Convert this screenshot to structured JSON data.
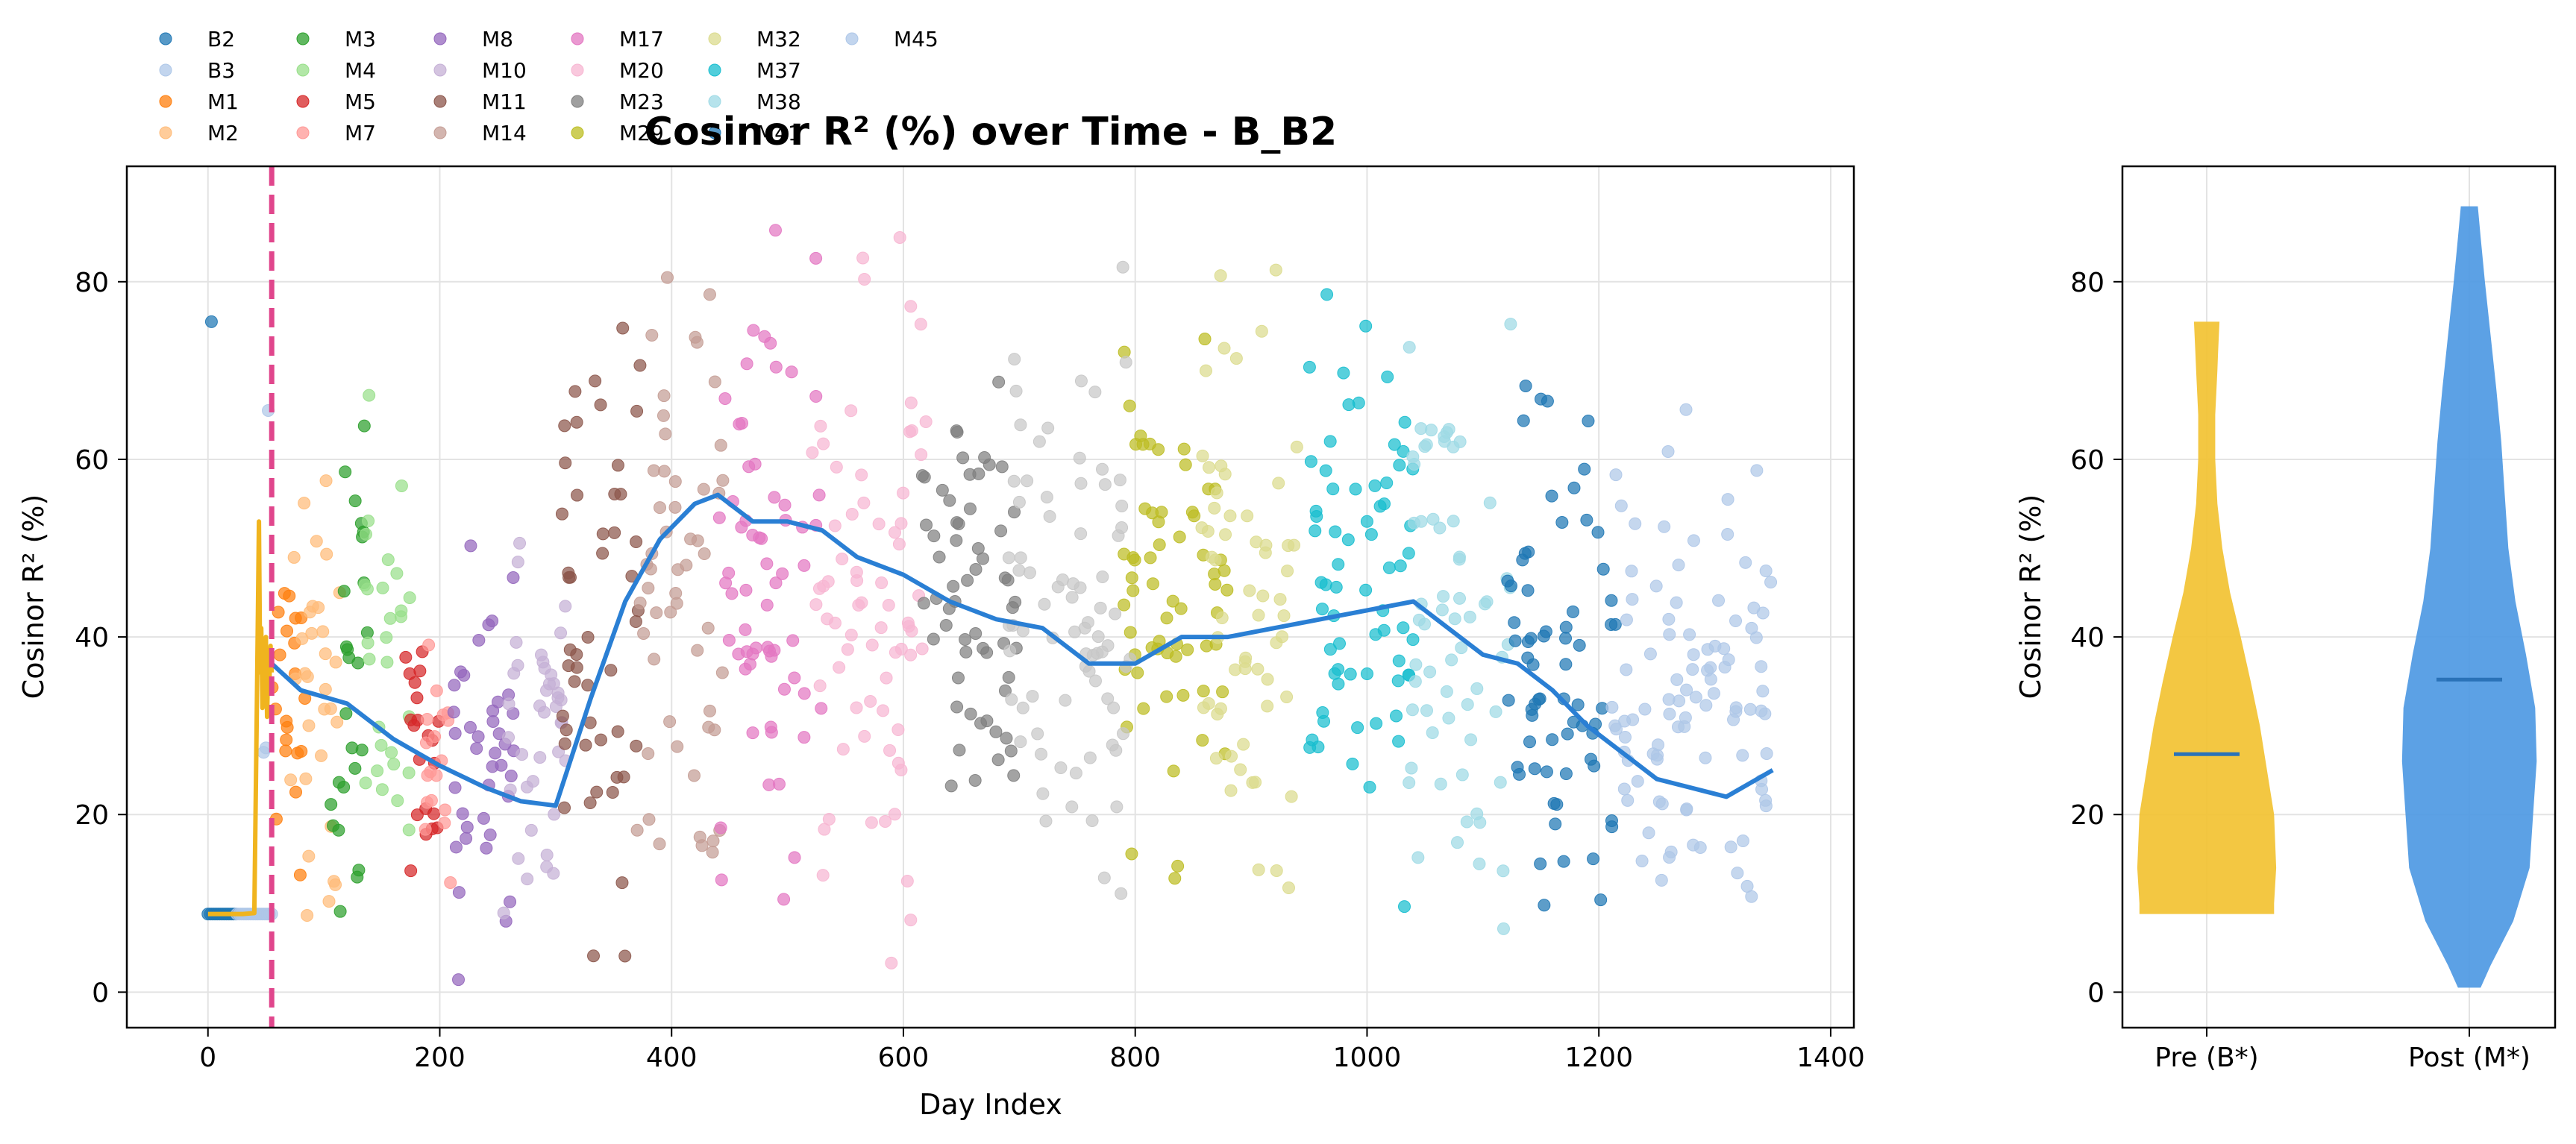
{
  "chart_data": [
    {
      "type": "scatter",
      "title": "Cosinor R² (%) over Time - B_B2",
      "xlabel": "Day Index",
      "ylabel": "Cosinor R² (%)",
      "xlim": [
        -70,
        1420
      ],
      "ylim": [
        -4,
        93
      ],
      "xticks": [
        0,
        200,
        400,
        600,
        800,
        1000,
        1200,
        1400
      ],
      "yticks": [
        0,
        20,
        40,
        60,
        80
      ],
      "grid": true,
      "legend_position": "top-left, above plot",
      "intervention_line": {
        "x": 55,
        "color": "#e0468c",
        "style": "dashed"
      },
      "series": [
        {
          "name": "B2",
          "color": "#1f77b4",
          "x_range": [
            0,
            25
          ],
          "pattern": "baseline",
          "base": 8.8,
          "spikes": [
            [
              3,
              75.5
            ]
          ]
        },
        {
          "name": "B3",
          "color": "#aec7e8",
          "x_range": [
            25,
            55
          ],
          "pattern": "baseline",
          "base": 8.8,
          "spikes": [
            [
              52,
              65.5
            ],
            [
              50,
              27.5
            ],
            [
              48,
              27
            ]
          ]
        },
        {
          "name": "M1",
          "color": "#ff7f0e",
          "x_range": [
            55,
            85
          ],
          "pattern": "scatter",
          "ymin": 0,
          "ymax": 61
        },
        {
          "name": "M2",
          "color": "#ffbb78",
          "x_range": [
            70,
            115
          ],
          "pattern": "scatter",
          "ymin": 0,
          "ymax": 66
        },
        {
          "name": "M3",
          "color": "#2ca02c",
          "x_range": [
            105,
            140
          ],
          "pattern": "scatter",
          "ymin": 1,
          "ymax": 65
        },
        {
          "name": "M4",
          "color": "#98df8a",
          "x_range": [
            135,
            175
          ],
          "pattern": "scatter",
          "ymin": 1,
          "ymax": 70
        },
        {
          "name": "M5",
          "color": "#d62728",
          "x_range": [
            170,
            200
          ],
          "pattern": "scatter",
          "ymin": 5,
          "ymax": 42
        },
        {
          "name": "M7",
          "color": "#ff9896",
          "x_range": [
            185,
            210
          ],
          "pattern": "scatter",
          "ymin": 10,
          "ymax": 40
        },
        {
          "name": "M8",
          "color": "#9467bd",
          "x_range": [
            210,
            265
          ],
          "pattern": "scatter",
          "ymin": 0,
          "ymax": 57
        },
        {
          "name": "M10",
          "color": "#c5b0d5",
          "x_range": [
            255,
            310
          ],
          "pattern": "scatter",
          "ymin": 1,
          "ymax": 57
        },
        {
          "name": "M11",
          "color": "#8c564b",
          "x_range": [
            305,
            375
          ],
          "pattern": "scatter",
          "ymin": 1,
          "ymax": 86
        },
        {
          "name": "M14",
          "color": "#c49c94",
          "x_range": [
            370,
            445
          ],
          "pattern": "scatter",
          "ymin": 5,
          "ymax": 88
        },
        {
          "name": "M17",
          "color": "#e377c2",
          "x_range": [
            440,
            530
          ],
          "pattern": "scatter",
          "ymin": 3,
          "ymax": 87
        },
        {
          "name": "M20",
          "color": "#f7b6d2",
          "x_range": [
            520,
            620
          ],
          "pattern": "scatter",
          "ymin": 3,
          "ymax": 86
        },
        {
          "name": "M23",
          "color": "#7f7f7f",
          "x_range": [
            615,
            700
          ],
          "pattern": "scatter",
          "ymin": 1,
          "ymax": 78
        },
        {
          "name": "M29",
          "color": "#bcbd22",
          "x_range": [
            790,
            880
          ],
          "pattern": "scatter",
          "ymin": 3,
          "ymax": 83
        },
        {
          "name": "M32",
          "color": "#dbdb8d",
          "x_range": [
            855,
            940
          ],
          "pattern": "scatter",
          "ymin": 3,
          "ymax": 86
        },
        {
          "name": "M37",
          "color": "#17becf",
          "x_range": [
            945,
            1040
          ],
          "pattern": "scatter",
          "ymin": 3,
          "ymax": 86
        },
        {
          "name": "M38",
          "color": "#9edae5",
          "x_range": [
            1035,
            1125
          ],
          "pattern": "scatter",
          "ymin": 1,
          "ymax": 83
        },
        {
          "name": "M41",
          "color": "#1f77b4",
          "x_range": [
            1120,
            1215
          ],
          "pattern": "scatter",
          "ymin": 1,
          "ymax": 75
        },
        {
          "name": "M45",
          "color": "#aec7e8",
          "x_range": [
            1210,
            1350
          ],
          "pattern": "scatter",
          "ymin": 1,
          "ymax": 67
        }
      ],
      "extra_points": [
        {
          "color": "#c7c7c7",
          "x_range": [
            690,
            800
          ],
          "ymin": 1,
          "ymax": 83
        }
      ],
      "pre_trend": {
        "color": "#f0b41e",
        "x": [
          0,
          30,
          40,
          42,
          44,
          45,
          46,
          47,
          48,
          49,
          50,
          51,
          52,
          53,
          54,
          55
        ],
        "y": [
          8.8,
          8.8,
          8.9,
          30,
          53,
          36,
          41,
          32,
          38,
          34,
          40,
          31,
          37,
          35,
          39,
          36
        ]
      },
      "rolling_mean": {
        "color": "#2a7fd4",
        "x": [
          55,
          80,
          120,
          160,
          200,
          240,
          270,
          300,
          330,
          360,
          390,
          420,
          440,
          470,
          500,
          530,
          560,
          600,
          640,
          680,
          720,
          760,
          800,
          840,
          880,
          920,
          960,
          1000,
          1040,
          1070,
          1100,
          1130,
          1160,
          1190,
          1220,
          1250,
          1280,
          1310,
          1350
        ],
        "y": [
          37,
          34,
          32.5,
          28.5,
          25.5,
          23,
          21.5,
          21,
          33,
          44,
          51,
          55,
          56,
          53,
          53,
          52,
          49,
          47,
          44,
          42,
          41,
          37,
          37,
          40,
          40,
          41,
          42,
          43,
          44,
          41,
          38,
          37,
          34,
          30,
          27,
          24,
          23,
          22,
          25
        ]
      }
    },
    {
      "type": "violin",
      "ylabel": "Cosinor R² (%)",
      "ylim": [
        -4,
        93
      ],
      "yticks": [
        0,
        20,
        40,
        60,
        80
      ],
      "grid": true,
      "categories": [
        "Pre (B*)",
        "Post (M*)"
      ],
      "series": [
        {
          "name": "Pre (B*)",
          "color": "#f2c12e",
          "min": 8.8,
          "max": 75.5,
          "median": 26.8
        },
        {
          "name": "Post (M*)",
          "color": "#4a97e2",
          "min": 0.5,
          "max": 88.5,
          "median": 35.2
        }
      ]
    }
  ]
}
